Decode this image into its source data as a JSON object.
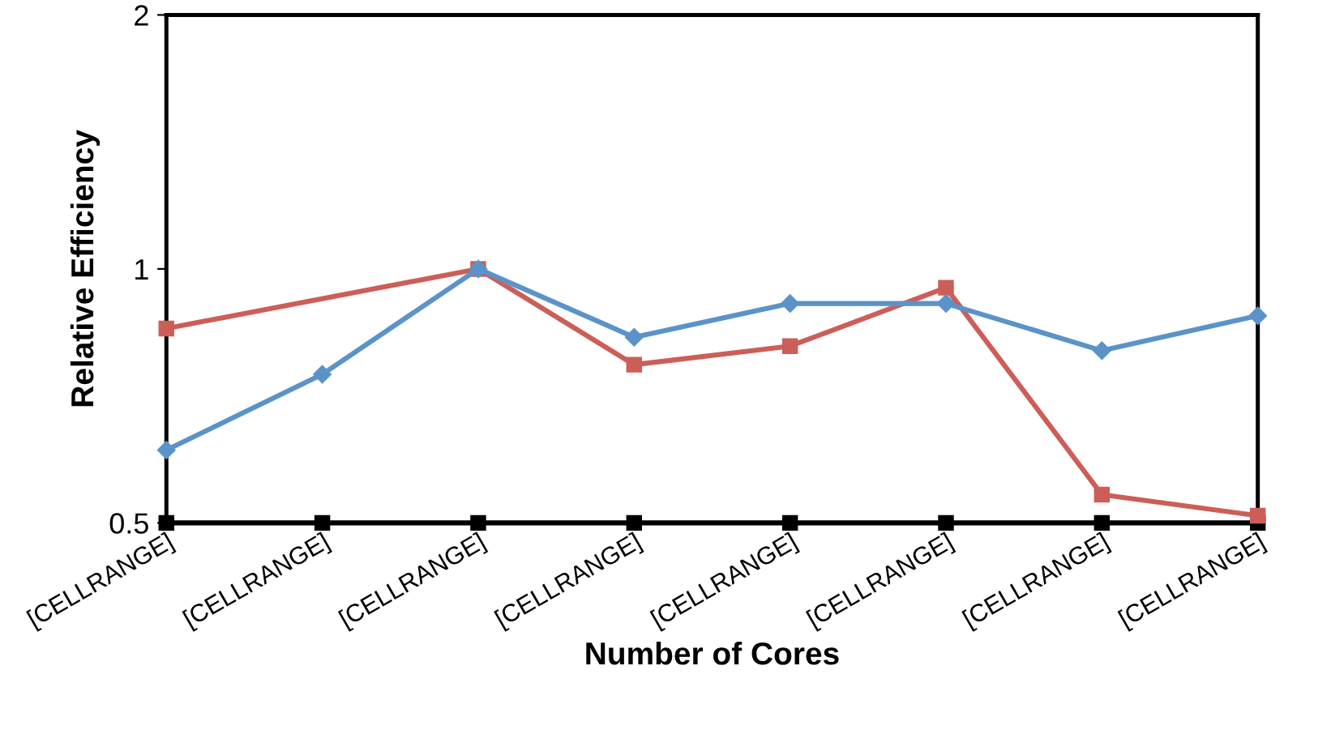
{
  "chart_data": {
    "type": "line",
    "xlabel": "Number of Cores",
    "ylabel": "Relative Efficiency",
    "categories": [
      "[CELLRANGE]",
      "[CELLRANGE]",
      "[CELLRANGE]",
      "[CELLRANGE]",
      "[CELLRANGE]",
      "[CELLRANGE]",
      "[CELLRANGE]",
      "[CELLRANGE]"
    ],
    "log": "y",
    "ylim": [
      0.5,
      2
    ],
    "yticks": [
      0.5,
      1,
      2
    ],
    "grid": false,
    "legend": false,
    "line_style": "solid",
    "series": [
      {
        "color": "#5b93c9",
        "marker": "diamond",
        "values": [
          0.61,
          0.75,
          1.0,
          0.83,
          0.91,
          0.91,
          0.8,
          0.88
        ]
      },
      {
        "color": "#cc5e58",
        "marker": "square",
        "values": [
          0.85,
          null,
          1.0,
          0.77,
          0.81,
          0.95,
          0.54,
          0.51
        ]
      },
      {
        "color": "#000000",
        "marker": "square",
        "values": [
          0.5,
          0.5,
          0.5,
          0.5,
          0.5,
          0.5,
          0.5,
          0.5
        ]
      }
    ]
  }
}
